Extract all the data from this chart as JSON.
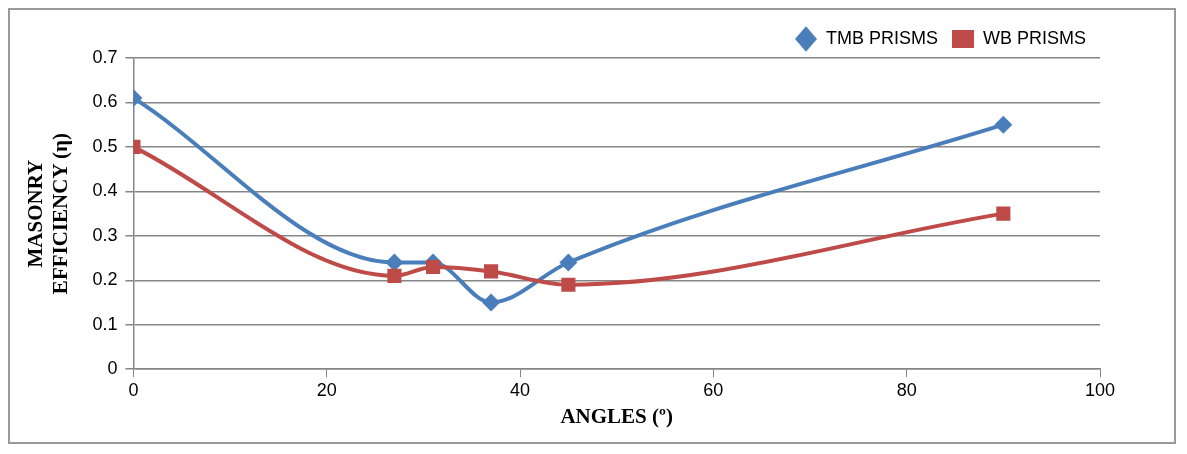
{
  "chart_data": {
    "type": "line",
    "xlabel": "ANGLES (º)",
    "ylabel": "MASONRY EFFICIENCY (η)",
    "x": [
      0,
      27,
      31,
      37,
      45,
      90
    ],
    "series": [
      {
        "name": "TMB PRISMS",
        "color": "#4a7ebb",
        "marker": "diamond",
        "values": [
          0.61,
          0.24,
          0.24,
          0.15,
          0.24,
          0.55
        ]
      },
      {
        "name": "WB PRISMS",
        "color": "#be4b48",
        "marker": "square",
        "values": [
          0.5,
          0.21,
          0.23,
          0.22,
          0.19,
          0.35
        ]
      }
    ],
    "xlim": [
      0,
      100
    ],
    "xticks": [
      0,
      20,
      40,
      60,
      80,
      100
    ],
    "ylim": [
      0,
      0.7
    ],
    "yticks": [
      0,
      0.1,
      0.2,
      0.3,
      0.4,
      0.5,
      0.6,
      0.7
    ],
    "grid": "y",
    "legend": "top right",
    "line_style": "solid"
  }
}
